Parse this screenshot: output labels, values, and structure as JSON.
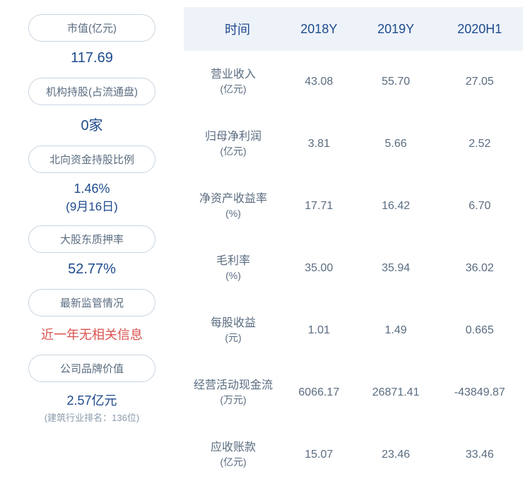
{
  "left": {
    "items": [
      {
        "label": "市值(亿元)",
        "value": "117.69",
        "type": "normal"
      },
      {
        "label": "机构持股(占流通盘)",
        "value": "0家",
        "type": "normal"
      },
      {
        "label": "北向资金持股比例",
        "value": "1.46%",
        "date": "(9月16日)",
        "type": "with-date"
      },
      {
        "label": "大股东质押率",
        "value": "52.77%",
        "type": "normal"
      },
      {
        "label": "最新监管情况",
        "value": "近一年无相关信息",
        "type": "red"
      },
      {
        "label": "公司品牌价值",
        "value": "2.57亿元",
        "note": "(建筑行业排名：136位)",
        "type": "with-note"
      }
    ]
  },
  "table": {
    "headers": [
      "时间",
      "2018Y",
      "2019Y",
      "2020H1"
    ],
    "rows": [
      {
        "label": "营业收入",
        "unit": "(亿元)",
        "values": [
          "43.08",
          "55.70",
          "27.05"
        ]
      },
      {
        "label": "归母净利润",
        "unit": "(亿元)",
        "values": [
          "3.81",
          "5.66",
          "2.52"
        ]
      },
      {
        "label": "净资产收益率",
        "unit": "(%)",
        "values": [
          "17.71",
          "16.42",
          "6.70"
        ]
      },
      {
        "label": "毛利率",
        "unit": "(%)",
        "values": [
          "35.00",
          "35.94",
          "36.02"
        ]
      },
      {
        "label": "每股收益",
        "unit": "(元)",
        "values": [
          "1.01",
          "1.49",
          "0.665"
        ]
      },
      {
        "label": "经营活动现金流",
        "unit": "(万元)",
        "values": [
          "6066.17",
          "26871.41",
          "-43849.87"
        ]
      },
      {
        "label": "应收账款",
        "unit": "(亿元)",
        "values": [
          "15.07",
          "23.46",
          "33.46"
        ]
      }
    ]
  }
}
